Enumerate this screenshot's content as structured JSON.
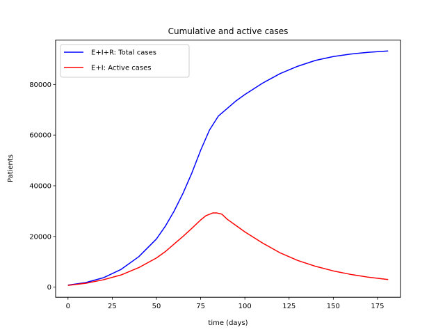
{
  "chart_data": {
    "type": "line",
    "title": "Cumulative and active cases",
    "xlabel": "time (days)",
    "ylabel": "Patients",
    "xlim": [
      -7,
      188
    ],
    "ylim": [
      -4000,
      97500
    ],
    "xticks": [
      0,
      25,
      50,
      75,
      100,
      125,
      150,
      175
    ],
    "yticks": [
      0,
      20000,
      40000,
      60000,
      80000
    ],
    "grid": false,
    "legend_position": "top-left",
    "series": [
      {
        "name": "E+I+R: Total cases",
        "color": "#0000ff",
        "x": [
          0,
          10,
          20,
          30,
          40,
          50,
          55,
          60,
          65,
          70,
          75,
          80,
          85,
          90,
          95,
          100,
          110,
          120,
          130,
          140,
          150,
          160,
          170,
          181
        ],
        "y": [
          800,
          1800,
          3700,
          7000,
          12000,
          19000,
          24000,
          30000,
          37000,
          45000,
          54000,
          62000,
          67500,
          70500,
          73500,
          76000,
          80500,
          84300,
          87200,
          89500,
          91000,
          92000,
          92700,
          93200
        ]
      },
      {
        "name": "E+I: Active cases",
        "color": "#ff0000",
        "x": [
          0,
          10,
          20,
          30,
          40,
          50,
          55,
          60,
          65,
          70,
          75,
          78,
          82,
          84,
          87,
          90,
          95,
          100,
          110,
          120,
          130,
          140,
          150,
          160,
          170,
          181
        ],
        "y": [
          700,
          1500,
          2900,
          4800,
          7700,
          11500,
          14000,
          17000,
          20000,
          23200,
          26500,
          28200,
          29300,
          29300,
          28800,
          26800,
          24300,
          21800,
          17400,
          13500,
          10500,
          8200,
          6400,
          5000,
          3900,
          3000
        ]
      }
    ]
  }
}
